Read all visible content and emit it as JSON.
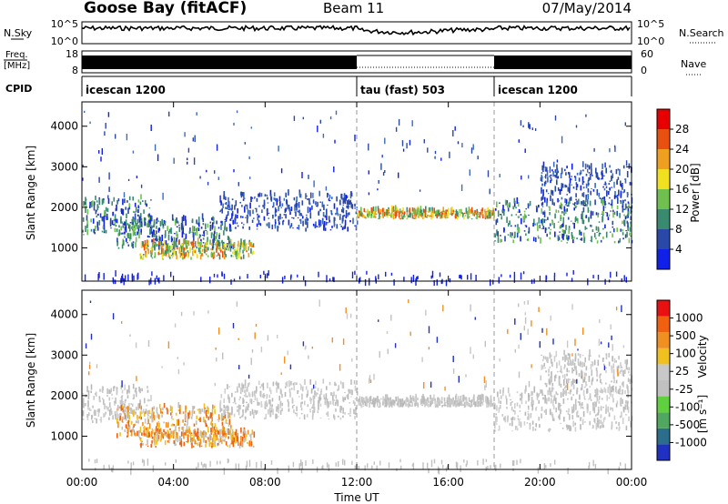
{
  "header": {
    "station": "Goose Bay (fitACF)",
    "beam": "Beam 11",
    "date": "07/May/2014"
  },
  "noise_panel": {
    "left_label": "N.Sky",
    "left_ticks": [
      "10^5",
      "10^0"
    ],
    "right_label": "N.Search",
    "right_ticks": [
      "10^5",
      "10^0"
    ]
  },
  "freq_panel": {
    "left_label_1": "Freq.",
    "left_label_2": "[MHz]",
    "left_ticks": [
      "18",
      "8"
    ],
    "right_label": "Nave",
    "right_ticks": [
      "60",
      "0"
    ]
  },
  "cpid_panel": {
    "label": "CPID",
    "segments": [
      {
        "name": "icescan 1200",
        "start": 0,
        "end": 12
      },
      {
        "name": "tau (fast) 503",
        "start": 12,
        "end": 18
      },
      {
        "name": "icescan 1200",
        "start": 18,
        "end": 24
      }
    ]
  },
  "x_axis": {
    "label": "Time UT",
    "ticks": [
      "00:00",
      "04:00",
      "08:00",
      "12:00",
      "16:00",
      "20:00",
      "00:00"
    ],
    "tick_hours": [
      0,
      4,
      8,
      12,
      16,
      20,
      24
    ],
    "range": [
      0,
      24
    ]
  },
  "power_panel": {
    "ylabel": "Slant Range [km]",
    "yticks": [
      "1000",
      "2000",
      "3000",
      "4000"
    ],
    "ytick_values": [
      1000,
      2000,
      3000,
      4000
    ],
    "ylim": [
      180,
      4600
    ],
    "colorbar_label": "Power [dB]",
    "colorbar_ticks": [
      "4",
      "8",
      "12",
      "16",
      "20",
      "24",
      "28"
    ],
    "colorbar_colors": [
      "#1020e8",
      "#2a48a8",
      "#3a8a70",
      "#70c050",
      "#f0e020",
      "#f0a020",
      "#e85010",
      "#e80000"
    ]
  },
  "velocity_panel": {
    "ylabel": "Slant Range [km]",
    "yticks": [
      "1000",
      "2000",
      "3000",
      "4000"
    ],
    "ytick_values": [
      1000,
      2000,
      3000,
      4000
    ],
    "ylim": [
      180,
      4600
    ],
    "colorbar_label": "Velocity",
    "colorbar_units": "[m s⁻¹]",
    "colorbar_ticks": [
      "1000",
      "500",
      "100",
      "25",
      "-25",
      "-100",
      "-500",
      "-1000"
    ],
    "colorbar_colors": [
      "#2030c0",
      "#2a6e8c",
      "#50a860",
      "#60d040",
      "#c0c0c0",
      "#c8c8c8",
      "#f0c020",
      "#f09020",
      "#f06010",
      "#e81010"
    ]
  },
  "chart_data": {
    "type": "heatmap",
    "title": "Goose Bay (fitACF)",
    "xlabel": "Time UT",
    "ylabel": "Slant Range [km]",
    "xlim": [
      0,
      24
    ],
    "ylim": [
      180,
      4600
    ],
    "scatter_bands": [
      {
        "t0": 0,
        "t1": 3,
        "r0": 1300,
        "r1": 2200,
        "pw": "mid",
        "vel": "gray"
      },
      {
        "t0": 1.5,
        "t1": 6.5,
        "r0": 950,
        "r1": 1700,
        "pw": "mid",
        "vel": "orange"
      },
      {
        "t0": 2.5,
        "t1": 7.5,
        "r0": 700,
        "r1": 1100,
        "pw": "high",
        "vel": "orange"
      },
      {
        "t0": 6,
        "t1": 12,
        "r0": 1400,
        "r1": 2300,
        "pw": "low",
        "vel": "gray"
      },
      {
        "t0": 12,
        "t1": 18,
        "r0": 1700,
        "r1": 1900,
        "pw": "high",
        "vel": "gray"
      },
      {
        "t0": 18,
        "t1": 24,
        "r0": 1100,
        "r1": 2100,
        "pw": "mid",
        "vel": "gray"
      },
      {
        "t0": 20,
        "t1": 24,
        "r0": 2000,
        "r1": 3000,
        "pw": "low",
        "vel": "gray"
      }
    ]
  }
}
